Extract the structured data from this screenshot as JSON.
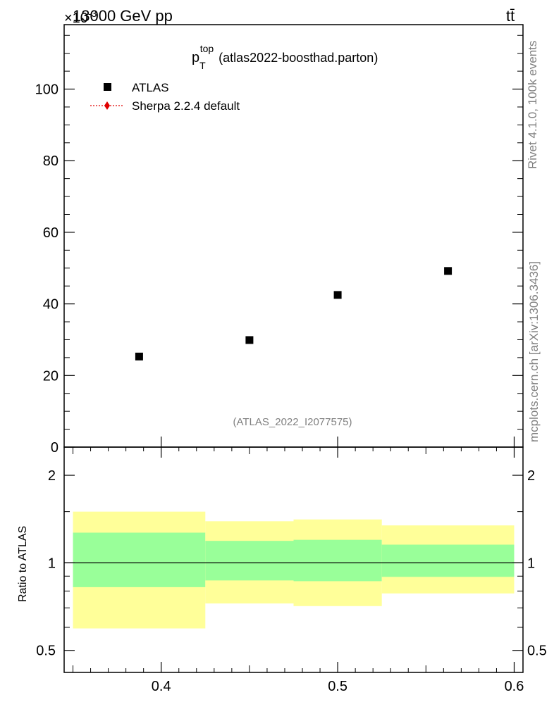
{
  "header": {
    "energy_label": "13000 GeV pp",
    "process_label": "tt̄",
    "exponent_label": "×10",
    "exponent_power": "-3"
  },
  "side_labels": {
    "rivet": "Rivet 4.1.0,  100k events",
    "mcplots": "mcplots.cern.ch [arXiv:1306.3436]"
  },
  "plot_title": {
    "main": "p",
    "sub": "T",
    "sup": "top",
    "rest": " (atlas2022-boosthad.parton)"
  },
  "watermark": "(ATLAS_2022_I2077575)",
  "legend": [
    {
      "label": "ATLAS",
      "color": "#000000",
      "marker": "square"
    },
    {
      "label": "Sherpa 2.2.4 default",
      "color": "#e00000",
      "marker": "diamond-dotted"
    }
  ],
  "chart_data": [
    {
      "type": "scatter",
      "xlim": [
        0.345,
        0.605
      ],
      "ylim": [
        0,
        118
      ],
      "y_scale_exponent": -3,
      "yticks": [
        0,
        20,
        40,
        60,
        80,
        100
      ],
      "yticklabels": [
        "0",
        "20",
        "40",
        "60",
        "80",
        "100"
      ],
      "series": [
        {
          "name": "ATLAS",
          "x": [
            0.3875,
            0.45,
            0.5,
            0.5625
          ],
          "y": [
            25.3,
            29.9,
            42.5,
            49.2
          ]
        }
      ]
    },
    {
      "type": "area",
      "ylabel": "Ratio to ATLAS",
      "yscale": "log",
      "ylim": [
        0.42,
        2.5
      ],
      "xlim": [
        0.345,
        0.605
      ],
      "xticks": [
        0.4,
        0.5,
        0.6
      ],
      "xticklabels": [
        "0.4",
        "0.5",
        "0.6"
      ],
      "yticks": [
        0.5,
        1,
        2
      ],
      "yticklabels": [
        "0.5",
        "1",
        "2"
      ],
      "reference_line": 1,
      "bins": [
        {
          "x_low": 0.35,
          "x_high": 0.425,
          "band_1sigma": [
            0.825,
            1.27
          ],
          "band_2sigma": [
            0.595,
            1.5
          ]
        },
        {
          "x_low": 0.425,
          "x_high": 0.475,
          "band_1sigma": [
            0.87,
            1.19
          ],
          "band_2sigma": [
            0.725,
            1.39
          ]
        },
        {
          "x_low": 0.475,
          "x_high": 0.525,
          "band_1sigma": [
            0.865,
            1.2
          ],
          "band_2sigma": [
            0.71,
            1.41
          ]
        },
        {
          "x_low": 0.525,
          "x_high": 0.6,
          "band_1sigma": [
            0.895,
            1.155
          ],
          "band_2sigma": [
            0.785,
            1.345
          ]
        }
      ],
      "band_colors": {
        "inner": "#99ff99",
        "outer": "#ffff99"
      }
    }
  ]
}
